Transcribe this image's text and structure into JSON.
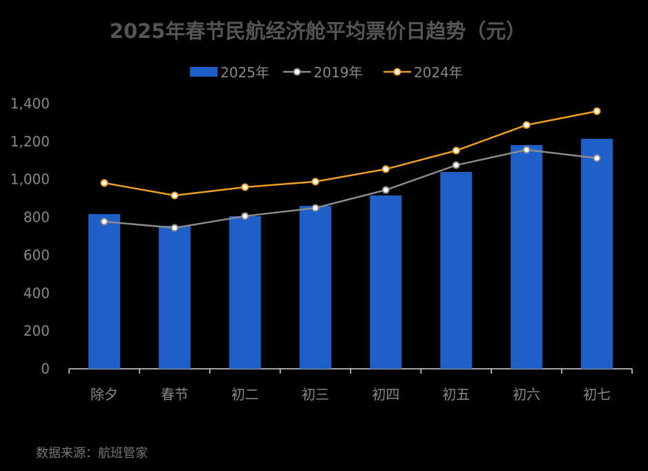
{
  "chart_data": {
    "type": "bar+line",
    "title": "2025年春节民航经济舱平均票价日趋势（元）",
    "categories": [
      "除夕",
      "春节",
      "初二",
      "初三",
      "初四",
      "初五",
      "初六",
      "初七"
    ],
    "series": [
      {
        "name": "2025年",
        "kind": "bar",
        "color": "#1f5fc8",
        "values": [
          817,
          755,
          806,
          860,
          915,
          1039,
          1181,
          1214
        ]
      },
      {
        "name": "2019年",
        "kind": "line",
        "color": "#8c8c8c",
        "values": [
          777,
          744,
          806,
          849,
          944,
          1075,
          1156,
          1112
        ]
      },
      {
        "name": "2024年",
        "kind": "line",
        "color": "#f0a020",
        "values": [
          981,
          915,
          959,
          988,
          1054,
          1152,
          1287,
          1360
        ]
      }
    ],
    "yticks": [
      "0",
      "200",
      "400",
      "600",
      "800",
      "1,000",
      "1,200",
      "1,400"
    ],
    "ylim": [
      0,
      1400
    ],
    "grid": false,
    "legend": "top-center"
  },
  "source": "数据来源：航班管家"
}
